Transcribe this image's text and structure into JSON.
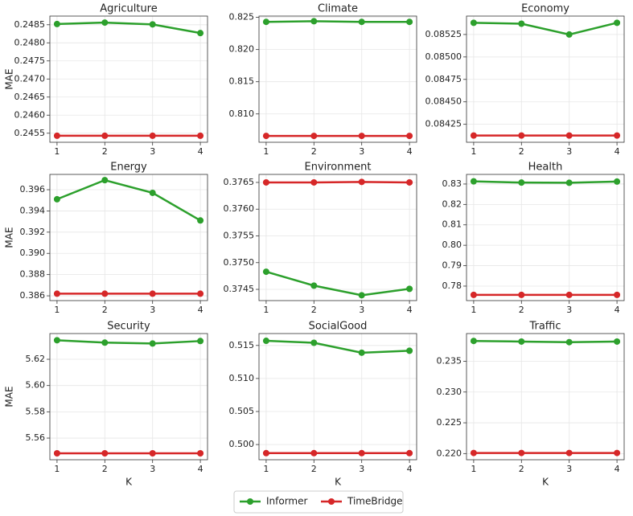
{
  "chart_data": [
    {
      "type": "line",
      "title": "Agriculture",
      "y_label": "MAE",
      "x": [
        1,
        2,
        3,
        4
      ],
      "xlim": [
        0.85,
        4.15
      ],
      "xticks": [
        1,
        2,
        3,
        4
      ],
      "ylim": [
        0.24525,
        0.24874
      ],
      "yticks": [
        0.2455,
        {
          "value": 0.246,
          "label": "0.2460"
        },
        0.2465,
        {
          "value": 0.247,
          "label": "0.2470"
        },
        0.2475,
        {
          "value": 0.248,
          "label": "0.2480"
        },
        0.2485
      ],
      "grid": true,
      "series": [
        {
          "name": "Informer",
          "color": "#2ca02c",
          "values": [
            0.24852,
            0.24856,
            0.24851,
            0.24827
          ]
        },
        {
          "name": "TimeBridge",
          "color": "#d62728",
          "values": [
            0.24543,
            0.24543,
            0.24543,
            0.24543
          ]
        }
      ]
    },
    {
      "type": "line",
      "title": "Climate",
      "x": [
        1,
        2,
        3,
        4
      ],
      "xlim": [
        0.85,
        4.15
      ],
      "xticks": [
        1,
        2,
        3,
        4
      ],
      "ylim": [
        0.8056,
        0.8252
      ],
      "yticks": [
        {
          "value": 0.81,
          "label": "0.810"
        },
        0.815,
        {
          "value": 0.82,
          "label": "0.820"
        },
        0.825
      ],
      "grid": true,
      "series": [
        {
          "name": "Informer",
          "color": "#2ca02c",
          "values": [
            0.8243,
            0.8244,
            0.8243,
            0.8243
          ]
        },
        {
          "name": "TimeBridge",
          "color": "#d62728",
          "values": [
            0.80659,
            0.80659,
            0.80659,
            0.80659
          ]
        }
      ]
    },
    {
      "type": "line",
      "title": "Economy",
      "x": [
        1,
        2,
        3,
        4
      ],
      "xlim": [
        0.85,
        4.15
      ],
      "xticks": [
        1,
        2,
        3,
        4
      ],
      "ylim": [
        0.08405,
        0.085455
      ],
      "yticks": [
        0.08425,
        {
          "value": 0.0845,
          "label": "0.08450"
        },
        0.08475,
        {
          "value": 0.085,
          "label": "0.08500"
        },
        0.08525
      ],
      "grid": true,
      "series": [
        {
          "name": "Informer",
          "color": "#2ca02c",
          "values": [
            0.08538,
            0.08537,
            0.08525,
            0.08538
          ]
        },
        {
          "name": "TimeBridge",
          "color": "#d62728",
          "values": [
            0.084125,
            0.084125,
            0.084125,
            0.084125
          ]
        }
      ]
    },
    {
      "type": "line",
      "title": "Energy",
      "y_label": "MAE",
      "x": [
        1,
        2,
        3,
        4
      ],
      "xlim": [
        0.85,
        4.15
      ],
      "xticks": [
        1,
        2,
        3,
        4
      ],
      "ylim": [
        0.38555,
        0.39744
      ],
      "yticks": [
        0.386,
        0.388,
        {
          "value": 0.39,
          "label": "0.390"
        },
        0.392,
        0.394,
        0.396
      ],
      "grid": true,
      "series": [
        {
          "name": "Informer",
          "color": "#2ca02c",
          "values": [
            0.3951,
            0.3969,
            0.3957,
            0.3931
          ]
        },
        {
          "name": "TimeBridge",
          "color": "#d62728",
          "values": [
            0.3862,
            0.3862,
            0.3862,
            0.3862
          ]
        }
      ]
    },
    {
      "type": "line",
      "title": "Environment",
      "x": [
        1,
        2,
        3,
        4
      ],
      "xlim": [
        0.85,
        4.15
      ],
      "xticks": [
        1,
        2,
        3,
        4
      ],
      "ylim": [
        0.37429,
        0.37665
      ],
      "yticks": [
        0.3745,
        {
          "value": 0.375,
          "label": "0.3750"
        },
        0.3755,
        {
          "value": 0.376,
          "label": "0.3760"
        },
        0.3765
      ],
      "grid": true,
      "series": [
        {
          "name": "Informer",
          "color": "#2ca02c",
          "values": [
            0.37483,
            0.37457,
            0.37439,
            0.37451
          ]
        },
        {
          "name": "TimeBridge",
          "color": "#d62728",
          "values": [
            0.3765,
            0.3765,
            0.37651,
            0.3765
          ]
        }
      ]
    },
    {
      "type": "line",
      "title": "Health",
      "x": [
        1,
        2,
        3,
        4
      ],
      "xlim": [
        0.85,
        4.15
      ],
      "xticks": [
        1,
        2,
        3,
        4
      ],
      "ylim": [
        0.7729,
        0.8347
      ],
      "yticks": [
        0.78,
        0.79,
        {
          "value": 0.8,
          "label": "0.80"
        },
        0.81,
        0.82,
        0.83
      ],
      "grid": true,
      "series": [
        {
          "name": "Informer",
          "color": "#2ca02c",
          "values": [
            0.8313,
            0.8307,
            0.8306,
            0.8312
          ]
        },
        {
          "name": "TimeBridge",
          "color": "#d62728",
          "values": [
            0.7757,
            0.7757,
            0.7757,
            0.7757
          ]
        }
      ]
    },
    {
      "type": "line",
      "title": "Security",
      "y_label": "MAE",
      "x_label": "K",
      "x": [
        1,
        2,
        3,
        4
      ],
      "xlim": [
        0.85,
        4.15
      ],
      "xticks": [
        1,
        2,
        3,
        4
      ],
      "ylim": [
        5.5435,
        5.6396
      ],
      "yticks": [
        5.56,
        5.58,
        {
          "value": 5.6,
          "label": "5.60"
        },
        5.62
      ],
      "grid": true,
      "series": [
        {
          "name": "Informer",
          "color": "#2ca02c",
          "values": [
            5.6345,
            5.6327,
            5.632,
            5.6339
          ]
        },
        {
          "name": "TimeBridge",
          "color": "#d62728",
          "values": [
            5.5484,
            5.5484,
            5.5484,
            5.5484
          ]
        }
      ]
    },
    {
      "type": "line",
      "title": "SocialGood",
      "x_label": "K",
      "x": [
        1,
        2,
        3,
        4
      ],
      "xlim": [
        0.85,
        4.15
      ],
      "xticks": [
        1,
        2,
        3,
        4
      ],
      "ylim": [
        0.4977,
        0.5168
      ],
      "yticks": [
        {
          "value": 0.5,
          "label": "0.500"
        },
        0.505,
        {
          "value": 0.51,
          "label": "0.510"
        },
        0.515
      ],
      "grid": true,
      "series": [
        {
          "name": "Informer",
          "color": "#2ca02c",
          "values": [
            0.5157,
            0.5154,
            0.5139,
            0.5142
          ]
        },
        {
          "name": "TimeBridge",
          "color": "#d62728",
          "values": [
            0.4987,
            0.4987,
            0.4987,
            0.4987
          ]
        }
      ]
    },
    {
      "type": "line",
      "title": "Traffic",
      "x_label": "K",
      "x": [
        1,
        2,
        3,
        4
      ],
      "xlim": [
        0.85,
        4.15
      ],
      "xticks": [
        1,
        2,
        3,
        4
      ],
      "ylim": [
        0.219,
        0.2395
      ],
      "yticks": [
        {
          "value": 0.22,
          "label": "0.220"
        },
        0.225,
        {
          "value": 0.23,
          "label": "0.230"
        },
        0.235
      ],
      "grid": true,
      "series": [
        {
          "name": "Informer",
          "color": "#2ca02c",
          "values": [
            0.2383,
            0.2382,
            0.2381,
            0.2382
          ]
        },
        {
          "name": "TimeBridge",
          "color": "#d62728",
          "values": [
            0.2201,
            0.2201,
            0.2201,
            0.2201
          ]
        }
      ]
    }
  ]
}
